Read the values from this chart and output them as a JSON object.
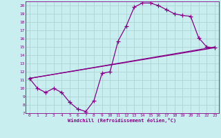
{
  "xlabel": "Windchill (Refroidissement éolien,°C)",
  "bg_color": "#c8eef0",
  "line_color": "#880088",
  "grid_color": "#aacccc",
  "xlim": [
    -0.5,
    23.5
  ],
  "ylim": [
    7,
    20.5
  ],
  "xticks": [
    0,
    1,
    2,
    3,
    4,
    5,
    6,
    7,
    8,
    9,
    10,
    11,
    12,
    13,
    14,
    15,
    16,
    17,
    18,
    19,
    20,
    21,
    22,
    23
  ],
  "yticks": [
    7,
    8,
    9,
    10,
    11,
    12,
    13,
    14,
    15,
    16,
    17,
    18,
    19,
    20
  ],
  "curve1_x": [
    0,
    1,
    2,
    3,
    4,
    5,
    6,
    7,
    8,
    9,
    10,
    11,
    12,
    13,
    14,
    15,
    16,
    17,
    18,
    19,
    20,
    21,
    22,
    23
  ],
  "curve1_y": [
    11.2,
    10.0,
    9.5,
    10.0,
    9.5,
    8.3,
    7.5,
    7.2,
    8.5,
    11.8,
    12.0,
    15.7,
    17.5,
    19.8,
    20.3,
    20.3,
    20.0,
    19.5,
    19.0,
    18.8,
    18.7,
    16.1,
    15.0,
    14.9
  ],
  "line1_x": [
    0,
    23
  ],
  "line1_y": [
    11.2,
    15.0
  ],
  "line2_x": [
    0,
    23
  ],
  "line2_y": [
    11.2,
    14.9
  ]
}
